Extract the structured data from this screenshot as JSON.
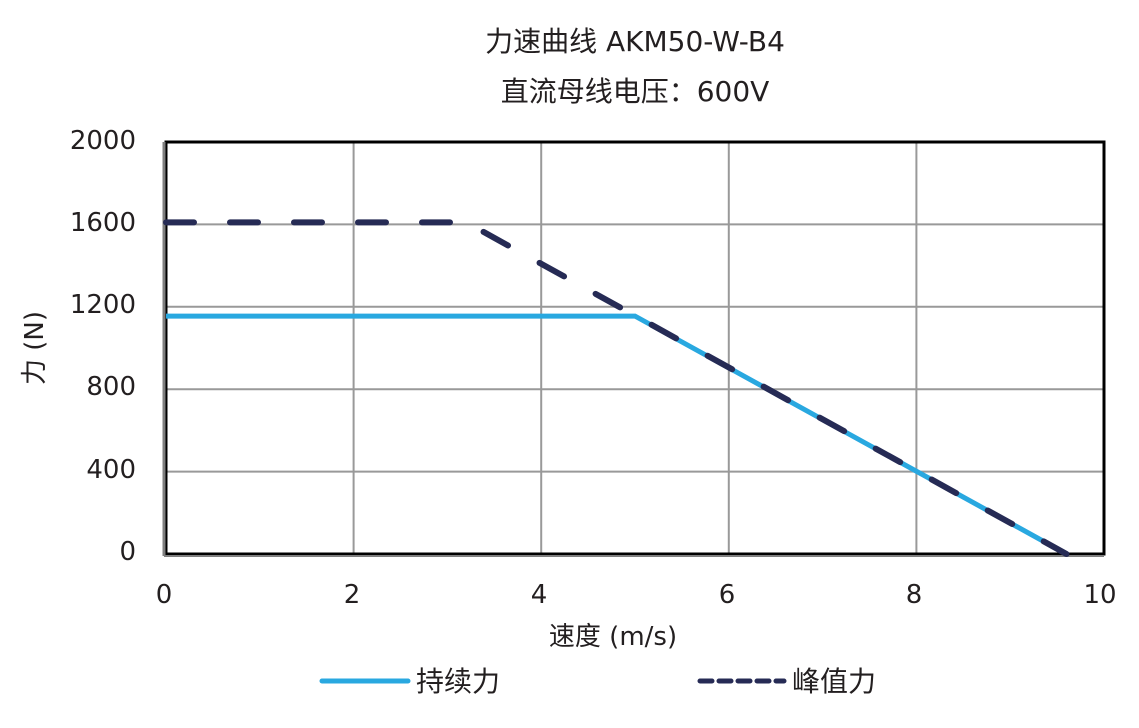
{
  "chart_data": {
    "type": "line",
    "title": "力速曲线 AKM50-W-B4",
    "subtitle": "直流母线电压：600V",
    "xlabel": "速度 (m/s)",
    "ylabel": "力 (N)",
    "xlim": [
      0,
      10
    ],
    "ylim": [
      0,
      2000
    ],
    "x_ticks": [
      "0",
      "2",
      "4",
      "6",
      "8",
      "10"
    ],
    "y_ticks": [
      "0",
      "400",
      "800",
      "1200",
      "1600",
      "2000"
    ],
    "grid": true,
    "legend_position": "bottom",
    "series": [
      {
        "name": "持续力",
        "color": "#29a8e0",
        "style": "solid",
        "points": [
          [
            0,
            1155
          ],
          [
            5.0,
            1155
          ],
          [
            9.6,
            0
          ]
        ]
      },
      {
        "name": "峰值力",
        "color": "#262b55",
        "style": "dashed",
        "points": [
          [
            0,
            1610
          ],
          [
            3.2,
            1610
          ],
          [
            9.6,
            0
          ]
        ]
      }
    ]
  },
  "colors": {
    "grid": "#999999",
    "axis": "#000000",
    "continuous": "#29a8e0",
    "peak": "#262b55"
  }
}
